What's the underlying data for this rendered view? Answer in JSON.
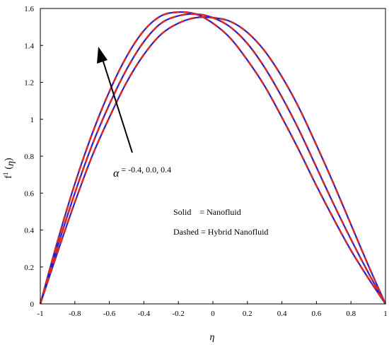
{
  "chart_data": {
    "type": "line",
    "title": "",
    "xlabel": "η",
    "ylabel": "f'(η)",
    "ylabel_parts": {
      "prime_text": "f",
      "sup": "1",
      "open": "(",
      "sub_eta": "η",
      "close": ")"
    },
    "xlim": [
      -1,
      1
    ],
    "ylim": [
      0,
      1.6
    ],
    "xticks": [
      "-1",
      "-0.8",
      "-0.6",
      "-0.4",
      "-0.2",
      "0",
      "0.2",
      "0.4",
      "0.6",
      "0.8",
      "1"
    ],
    "yticks": [
      "0",
      "0.2",
      "0.4",
      "0.6",
      "0.8",
      "1",
      "1.2",
      "1.4",
      "1.6"
    ],
    "grid": false,
    "legend": {
      "placement": "center-right",
      "entries": [
        {
          "style": "Solid",
          "label": "Nanofluid",
          "text": "Solid    = Nanofluid"
        },
        {
          "style": "Dashed",
          "label": "Hybrid Nanofluid",
          "text": "Dashed = Hybrid Nanofluid"
        }
      ]
    },
    "annotation": {
      "symbol": "α",
      "text": " = -0.4, 0.0, 0.4",
      "arrow": "points toward increasing α (peak shifts left and rises)"
    },
    "colors": {
      "solid": "#1f1fd6",
      "dashed": "#d22a2a"
    },
    "x": [
      -1,
      -0.9,
      -0.8,
      -0.7,
      -0.6,
      -0.5,
      -0.4,
      -0.3,
      -0.2,
      -0.1,
      0,
      0.1,
      0.2,
      0.3,
      0.4,
      0.5,
      0.6,
      0.7,
      0.8,
      0.9,
      1
    ],
    "series": [
      {
        "alpha": "-0.4",
        "style": "solid",
        "values": [
          0,
          0.28,
          0.55,
          0.8,
          1.01,
          1.2,
          1.35,
          1.46,
          1.52,
          1.55,
          1.55,
          1.53,
          1.47,
          1.37,
          1.23,
          1.06,
          0.86,
          0.65,
          0.43,
          0.21,
          0
        ]
      },
      {
        "alpha": "0.0",
        "style": "solid",
        "values": [
          0,
          0.31,
          0.6,
          0.86,
          1.08,
          1.27,
          1.42,
          1.52,
          1.56,
          1.57,
          1.55,
          1.5,
          1.41,
          1.28,
          1.12,
          0.94,
          0.74,
          0.54,
          0.35,
          0.17,
          0
        ]
      },
      {
        "alpha": "0.4",
        "style": "solid",
        "values": [
          0,
          0.34,
          0.65,
          0.92,
          1.15,
          1.34,
          1.48,
          1.56,
          1.58,
          1.57,
          1.52,
          1.44,
          1.32,
          1.18,
          1.01,
          0.83,
          0.64,
          0.46,
          0.29,
          0.14,
          0
        ]
      },
      {
        "alpha": "-0.4",
        "style": "dashed",
        "values": [
          0,
          0.28,
          0.55,
          0.8,
          1.01,
          1.2,
          1.35,
          1.46,
          1.52,
          1.55,
          1.55,
          1.53,
          1.47,
          1.37,
          1.23,
          1.06,
          0.86,
          0.65,
          0.43,
          0.21,
          0
        ]
      },
      {
        "alpha": "0.0",
        "style": "dashed",
        "values": [
          0,
          0.31,
          0.6,
          0.86,
          1.08,
          1.27,
          1.42,
          1.52,
          1.56,
          1.57,
          1.55,
          1.5,
          1.41,
          1.28,
          1.12,
          0.94,
          0.74,
          0.54,
          0.35,
          0.17,
          0
        ]
      },
      {
        "alpha": "0.4",
        "style": "dashed",
        "values": [
          0,
          0.34,
          0.65,
          0.92,
          1.15,
          1.34,
          1.48,
          1.56,
          1.58,
          1.57,
          1.52,
          1.44,
          1.32,
          1.18,
          1.01,
          0.83,
          0.64,
          0.46,
          0.29,
          0.14,
          0
        ]
      }
    ]
  }
}
